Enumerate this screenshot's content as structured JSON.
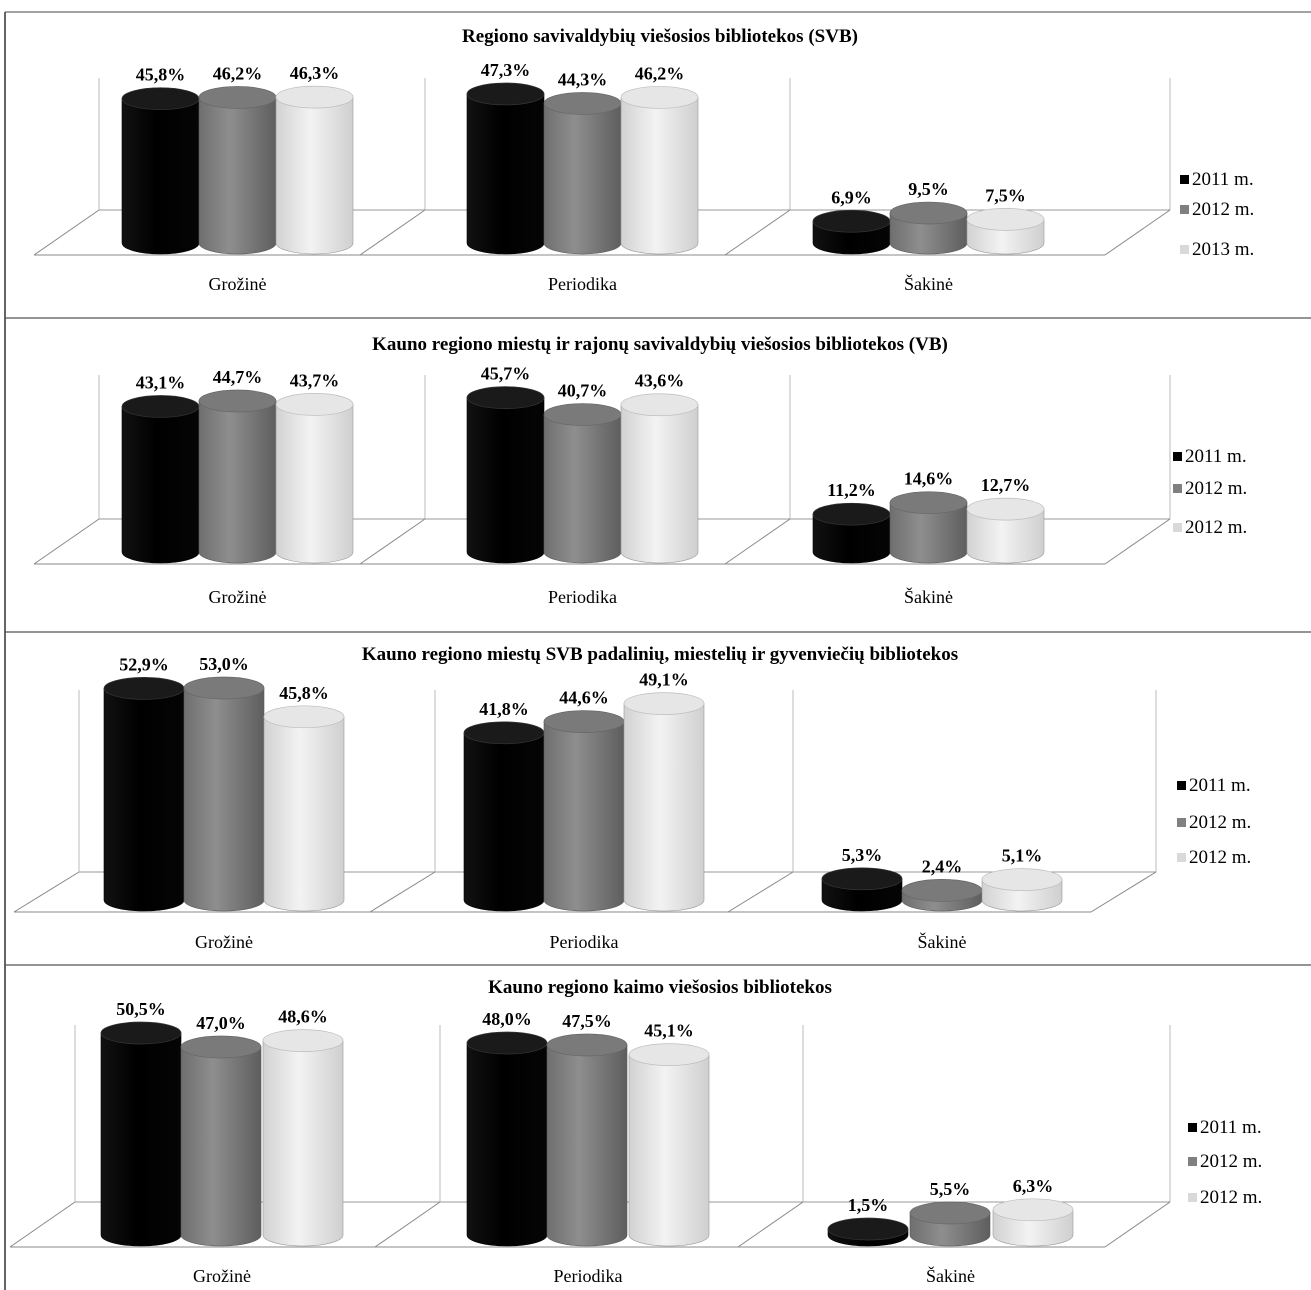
{
  "chart_data": [
    {
      "type": "bar",
      "title": "Regiono savivaldybių viešosios bibliotekos (SVB)",
      "categories": [
        "Grožinė",
        "Periodika",
        "Šakinė"
      ],
      "series": [
        {
          "name": "2011 m.",
          "color": "#000000",
          "values": [
            45.8,
            47.3,
            6.9
          ],
          "labels": [
            "45,8%",
            "47,3%",
            "6,9%"
          ]
        },
        {
          "name": "2012 m.",
          "color": "#808080",
          "values": [
            46.2,
            44.3,
            9.5
          ],
          "labels": [
            "46,2%",
            "44,3%",
            "9,5%"
          ]
        },
        {
          "name": "2013 m.",
          "color": "#d9d9d9",
          "values": [
            46.3,
            46.2,
            7.5
          ],
          "labels": [
            "46,3%",
            "46,2%",
            "7,5%"
          ]
        }
      ],
      "grid": false,
      "legend_position": "right"
    },
    {
      "type": "bar",
      "title": "Kauno regiono miestų ir rajonų savivaldybių viešosios bibliotekos (VB)",
      "categories": [
        "Grožinė",
        "Periodika",
        "Šakinė"
      ],
      "series": [
        {
          "name": "2011 m.",
          "color": "#000000",
          "values": [
            43.1,
            45.7,
            11.2
          ],
          "labels": [
            "43,1%",
            "45,7%",
            "11,2%"
          ]
        },
        {
          "name": "2012 m.",
          "color": "#808080",
          "values": [
            44.7,
            40.7,
            14.6
          ],
          "labels": [
            "44,7%",
            "40,7%",
            "14,6%"
          ]
        },
        {
          "name": "2012 m.",
          "color": "#d9d9d9",
          "values": [
            43.7,
            43.6,
            12.7
          ],
          "labels": [
            "43,7%",
            "43,6%",
            "12,7%"
          ]
        }
      ],
      "grid": false,
      "legend_position": "right"
    },
    {
      "type": "bar",
      "title": "Kauno regiono miestų SVB padalinių, miestelių ir gyvenviečių bibliotekos",
      "categories": [
        "Grožinė",
        "Periodika",
        "Šakinė"
      ],
      "series": [
        {
          "name": "2011 m.",
          "color": "#000000",
          "values": [
            52.9,
            41.8,
            5.3
          ],
          "labels": [
            "52,9%",
            "41,8%",
            "5,3%"
          ]
        },
        {
          "name": "2012 m.",
          "color": "#808080",
          "values": [
            53.0,
            44.6,
            2.4
          ],
          "labels": [
            "53,0%",
            "44,6%",
            "2,4%"
          ]
        },
        {
          "name": "2012 m.",
          "color": "#d9d9d9",
          "values": [
            45.8,
            49.1,
            5.1
          ],
          "labels": [
            "45,8%",
            "49,1%",
            "5,1%"
          ]
        }
      ],
      "grid": false,
      "legend_position": "right"
    },
    {
      "type": "bar",
      "title": "Kauno regiono kaimo viešosios bibliotekos",
      "categories": [
        "Grožinė",
        "Periodika",
        "Šakinė"
      ],
      "series": [
        {
          "name": "2011 m.",
          "color": "#000000",
          "values": [
            50.5,
            48.0,
            1.5
          ],
          "labels": [
            "50,5%",
            "48,0%",
            "1,5%"
          ]
        },
        {
          "name": "2012 m.",
          "color": "#808080",
          "values": [
            47.0,
            47.5,
            5.5
          ],
          "labels": [
            "47,0%",
            "47,5%",
            "5,5%"
          ]
        },
        {
          "name": "2012 m.",
          "color": "#d9d9d9",
          "values": [
            48.6,
            45.1,
            6.3
          ],
          "labels": [
            "48,6%",
            "45,1%",
            "6,3%"
          ]
        }
      ],
      "grid": false,
      "legend_position": "right"
    }
  ]
}
